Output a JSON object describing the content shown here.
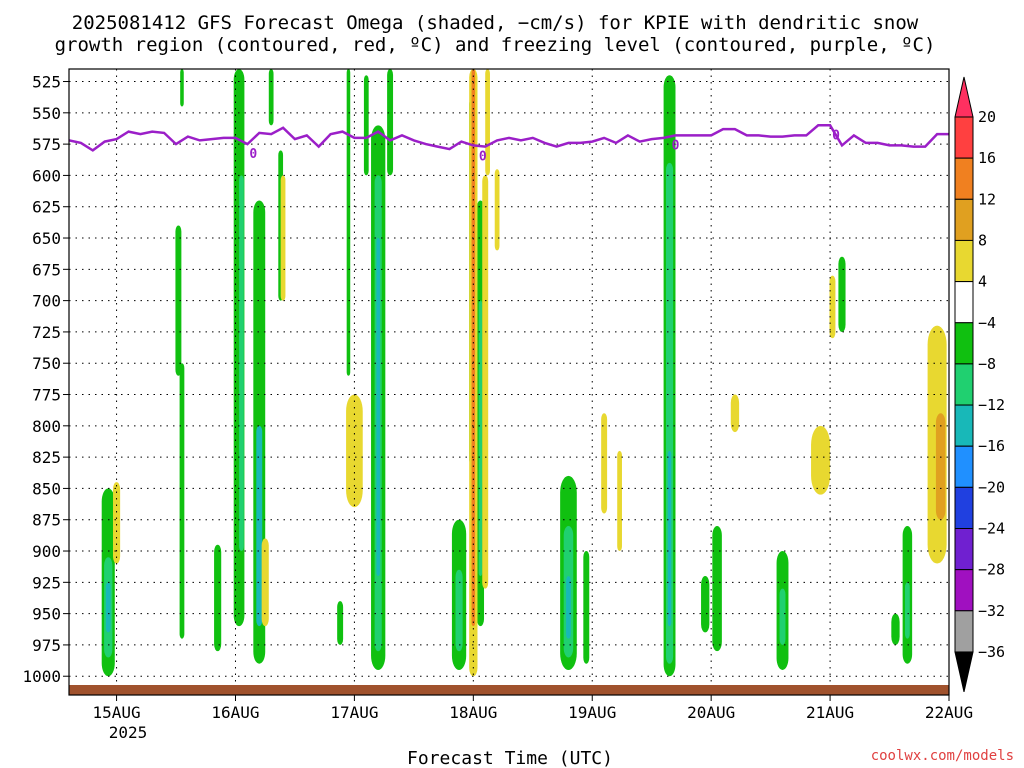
{
  "chart_data": {
    "type": "heatmap",
    "title_lines": [
      "2025081412 GFS Forecast Omega (shaded, −cm/s) for KPIE with dendritic snow",
      "growth region (contoured, red, ºC) and freezing level (contoured, purple, ºC)"
    ],
    "xlabel": "Forecast Time (UTC)",
    "x_ticks": [
      "15AUG",
      "16AUG",
      "17AUG",
      "18AUG",
      "19AUG",
      "20AUG",
      "21AUG",
      "22AUG"
    ],
    "x_year": "2025",
    "y_ticks": [
      "525",
      "550",
      "575",
      "600",
      "625",
      "650",
      "675",
      "700",
      "725",
      "750",
      "775",
      "800",
      "825",
      "850",
      "875",
      "900",
      "925",
      "950",
      "975",
      "1000"
    ],
    "xlim_days": [
      14.6,
      22.0
    ],
    "ylim_hpa": [
      515,
      1015
    ],
    "grid": true,
    "colorbar": {
      "labels": [
        "20",
        "16",
        "12",
        "8",
        "4",
        "−4",
        "−8",
        "−12",
        "−16",
        "−20",
        "−24",
        "−28",
        "−32",
        "−36"
      ],
      "colors": [
        "#ff3060",
        "#ff4040",
        "#f08020",
        "#e0a020",
        "#e8d830",
        "#ffffff",
        "#10c010",
        "#20d070",
        "#18b8b8",
        "#2090ff",
        "#2040e0",
        "#7020d0",
        "#a010c0",
        "#a0a0a0"
      ]
    },
    "freezing_label": "0",
    "freezing_level": [
      [
        14.6,
        572
      ],
      [
        14.7,
        574
      ],
      [
        14.8,
        580
      ],
      [
        14.9,
        573
      ],
      [
        15.0,
        571
      ],
      [
        15.1,
        565
      ],
      [
        15.2,
        567
      ],
      [
        15.3,
        565
      ],
      [
        15.4,
        566
      ],
      [
        15.5,
        575
      ],
      [
        15.6,
        569
      ],
      [
        15.7,
        572
      ],
      [
        15.8,
        571
      ],
      [
        15.9,
        570
      ],
      [
        16.0,
        570
      ],
      [
        16.1,
        575
      ],
      [
        16.2,
        566
      ],
      [
        16.3,
        567
      ],
      [
        16.4,
        562
      ],
      [
        16.5,
        571
      ],
      [
        16.6,
        568
      ],
      [
        16.7,
        577
      ],
      [
        16.8,
        567
      ],
      [
        16.9,
        565
      ],
      [
        17.0,
        570
      ],
      [
        17.1,
        570
      ],
      [
        17.2,
        565
      ],
      [
        17.3,
        572
      ],
      [
        17.4,
        568
      ],
      [
        17.5,
        572
      ],
      [
        17.6,
        575
      ],
      [
        17.7,
        577
      ],
      [
        17.8,
        579
      ],
      [
        17.9,
        573
      ],
      [
        18.0,
        576
      ],
      [
        18.1,
        577
      ],
      [
        18.2,
        572
      ],
      [
        18.3,
        570
      ],
      [
        18.4,
        572
      ],
      [
        18.5,
        570
      ],
      [
        18.6,
        574
      ],
      [
        18.7,
        577
      ],
      [
        18.8,
        574
      ],
      [
        18.9,
        574
      ],
      [
        19.0,
        573
      ],
      [
        19.1,
        570
      ],
      [
        19.2,
        574
      ],
      [
        19.3,
        568
      ],
      [
        19.4,
        573
      ],
      [
        19.5,
        571
      ],
      [
        19.6,
        570
      ],
      [
        19.7,
        568
      ],
      [
        19.8,
        568
      ],
      [
        19.9,
        568
      ],
      [
        20.0,
        568
      ],
      [
        20.1,
        563
      ],
      [
        20.2,
        563
      ],
      [
        20.3,
        568
      ],
      [
        20.4,
        568
      ],
      [
        20.5,
        569
      ],
      [
        20.6,
        569
      ],
      [
        20.7,
        568
      ],
      [
        20.8,
        568
      ],
      [
        20.9,
        560
      ],
      [
        21.0,
        560
      ],
      [
        21.1,
        576
      ],
      [
        21.2,
        568
      ],
      [
        21.3,
        574
      ],
      [
        21.4,
        574
      ],
      [
        21.5,
        576
      ],
      [
        21.6,
        576
      ],
      [
        21.7,
        577
      ],
      [
        21.8,
        577
      ],
      [
        21.9,
        567
      ],
      [
        22.0,
        567
      ]
    ],
    "omega_regions": [
      {
        "x": 14.93,
        "y0": 850,
        "y1": 1000,
        "w": 0.11,
        "c": "#10c010"
      },
      {
        "x": 14.93,
        "y0": 905,
        "y1": 985,
        "w": 0.07,
        "c": "#20d070"
      },
      {
        "x": 14.93,
        "y0": 925,
        "y1": 965,
        "w": 0.04,
        "c": "#18b8b8"
      },
      {
        "x": 15.55,
        "y0": 515,
        "y1": 545,
        "w": 0.03,
        "c": "#10c010"
      },
      {
        "x": 15.52,
        "y0": 640,
        "y1": 760,
        "w": 0.05,
        "c": "#10c010"
      },
      {
        "x": 15.55,
        "y0": 750,
        "y1": 970,
        "w": 0.04,
        "c": "#10c010"
      },
      {
        "x": 15.85,
        "y0": 895,
        "y1": 980,
        "w": 0.06,
        "c": "#10c010"
      },
      {
        "x": 16.03,
        "y0": 515,
        "y1": 960,
        "w": 0.09,
        "c": "#10c010"
      },
      {
        "x": 16.05,
        "y0": 600,
        "y1": 900,
        "w": 0.04,
        "c": "#20d070"
      },
      {
        "x": 16.2,
        "y0": 620,
        "y1": 990,
        "w": 0.1,
        "c": "#10c010"
      },
      {
        "x": 16.2,
        "y0": 800,
        "y1": 960,
        "w": 0.05,
        "c": "#18b8b8"
      },
      {
        "x": 16.3,
        "y0": 515,
        "y1": 560,
        "w": 0.04,
        "c": "#10c010"
      },
      {
        "x": 16.38,
        "y0": 580,
        "y1": 700,
        "w": 0.04,
        "c": "#10c010"
      },
      {
        "x": 16.95,
        "y0": 515,
        "y1": 760,
        "w": 0.03,
        "c": "#10c010"
      },
      {
        "x": 16.88,
        "y0": 940,
        "y1": 975,
        "w": 0.05,
        "c": "#10c010"
      },
      {
        "x": 17.1,
        "y0": 520,
        "y1": 600,
        "w": 0.04,
        "c": "#10c010"
      },
      {
        "x": 17.2,
        "y0": 560,
        "y1": 995,
        "w": 0.12,
        "c": "#10c010"
      },
      {
        "x": 17.2,
        "y0": 600,
        "y1": 980,
        "w": 0.06,
        "c": "#20d070"
      },
      {
        "x": 17.2,
        "y0": 650,
        "y1": 920,
        "w": 0.03,
        "c": "#18b8b8"
      },
      {
        "x": 17.3,
        "y0": 515,
        "y1": 600,
        "w": 0.05,
        "c": "#10c010"
      },
      {
        "x": 17.88,
        "y0": 875,
        "y1": 995,
        "w": 0.12,
        "c": "#10c010"
      },
      {
        "x": 17.88,
        "y0": 915,
        "y1": 980,
        "w": 0.06,
        "c": "#20d070"
      },
      {
        "x": 17.98,
        "y0": 540,
        "y1": 830,
        "w": 0.03,
        "c": "#10c010"
      },
      {
        "x": 18.06,
        "y0": 620,
        "y1": 960,
        "w": 0.06,
        "c": "#10c010"
      },
      {
        "x": 18.06,
        "y0": 700,
        "y1": 920,
        "w": 0.03,
        "c": "#20d070"
      },
      {
        "x": 18.8,
        "y0": 840,
        "y1": 995,
        "w": 0.14,
        "c": "#10c010"
      },
      {
        "x": 18.8,
        "y0": 880,
        "y1": 985,
        "w": 0.08,
        "c": "#20d070"
      },
      {
        "x": 18.8,
        "y0": 920,
        "y1": 970,
        "w": 0.04,
        "c": "#18b8b8"
      },
      {
        "x": 18.95,
        "y0": 900,
        "y1": 990,
        "w": 0.05,
        "c": "#10c010"
      },
      {
        "x": 19.65,
        "y0": 520,
        "y1": 1000,
        "w": 0.1,
        "c": "#10c010"
      },
      {
        "x": 19.65,
        "y0": 590,
        "y1": 990,
        "w": 0.06,
        "c": "#20d070"
      },
      {
        "x": 19.65,
        "y0": 820,
        "y1": 960,
        "w": 0.03,
        "c": "#18b8b8"
      },
      {
        "x": 19.95,
        "y0": 920,
        "y1": 965,
        "w": 0.07,
        "c": "#10c010"
      },
      {
        "x": 20.05,
        "y0": 880,
        "y1": 980,
        "w": 0.08,
        "c": "#10c010"
      },
      {
        "x": 20.6,
        "y0": 900,
        "y1": 995,
        "w": 0.1,
        "c": "#10c010"
      },
      {
        "x": 20.6,
        "y0": 930,
        "y1": 975,
        "w": 0.05,
        "c": "#20d070"
      },
      {
        "x": 21.1,
        "y0": 665,
        "y1": 725,
        "w": 0.06,
        "c": "#10c010"
      },
      {
        "x": 21.65,
        "y0": 880,
        "y1": 990,
        "w": 0.08,
        "c": "#10c010"
      },
      {
        "x": 21.65,
        "y0": 925,
        "y1": 970,
        "w": 0.04,
        "c": "#20d070"
      },
      {
        "x": 21.55,
        "y0": 950,
        "y1": 975,
        "w": 0.07,
        "c": "#10c010"
      }
    ],
    "upward_regions": [
      {
        "x": 15.0,
        "y0": 845,
        "y1": 910,
        "w": 0.06,
        "c": "#e8d830"
      },
      {
        "x": 16.25,
        "y0": 890,
        "y1": 960,
        "w": 0.06,
        "c": "#e8d830"
      },
      {
        "x": 16.4,
        "y0": 600,
        "y1": 700,
        "w": 0.04,
        "c": "#e8d830"
      },
      {
        "x": 17.0,
        "y0": 775,
        "y1": 865,
        "w": 0.14,
        "c": "#e8d830"
      },
      {
        "x": 18.0,
        "y0": 515,
        "y1": 1000,
        "w": 0.07,
        "c": "#e8d830"
      },
      {
        "x": 18.0,
        "y0": 515,
        "y1": 960,
        "w": 0.03,
        "c": "#f08020"
      },
      {
        "x": 18.12,
        "y0": 515,
        "y1": 600,
        "w": 0.04,
        "c": "#e8d830"
      },
      {
        "x": 18.1,
        "y0": 600,
        "y1": 930,
        "w": 0.05,
        "c": "#e8d830"
      },
      {
        "x": 18.2,
        "y0": 595,
        "y1": 660,
        "w": 0.04,
        "c": "#e8d830"
      },
      {
        "x": 19.1,
        "y0": 790,
        "y1": 870,
        "w": 0.05,
        "c": "#e8d830"
      },
      {
        "x": 19.23,
        "y0": 820,
        "y1": 900,
        "w": 0.04,
        "c": "#e8d830"
      },
      {
        "x": 20.2,
        "y0": 775,
        "y1": 805,
        "w": 0.07,
        "c": "#e8d830"
      },
      {
        "x": 20.92,
        "y0": 800,
        "y1": 855,
        "w": 0.16,
        "c": "#e8d830"
      },
      {
        "x": 21.02,
        "y0": 680,
        "y1": 730,
        "w": 0.05,
        "c": "#e8d830"
      },
      {
        "x": 21.9,
        "y0": 720,
        "y1": 910,
        "w": 0.16,
        "c": "#e8d830"
      },
      {
        "x": 21.93,
        "y0": 790,
        "y1": 875,
        "w": 0.08,
        "c": "#e0a020"
      }
    ]
  },
  "credit": "coolwx.com/models"
}
